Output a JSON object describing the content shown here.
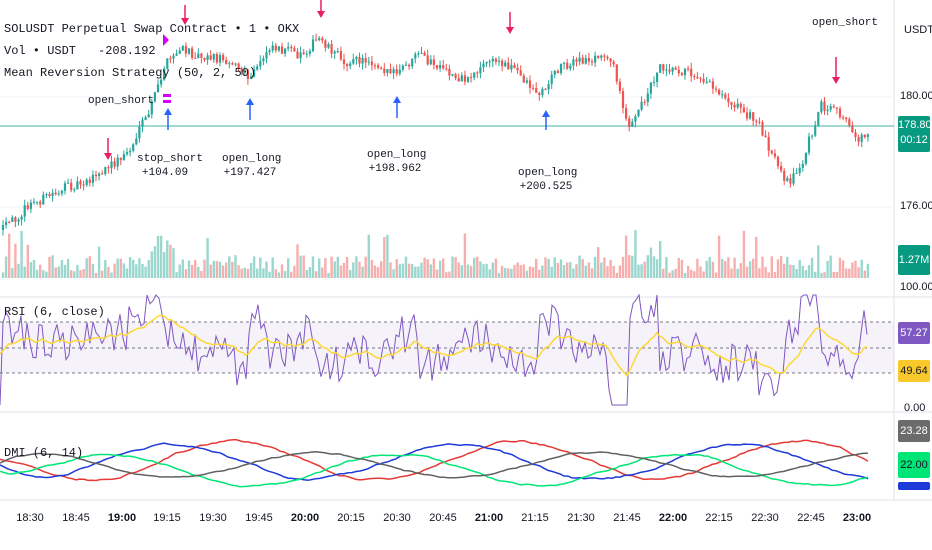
{
  "legend": {
    "symbol": "SOLUSDT Perpetual Swap Contract • 1 • OKX",
    "volume": "Vol • USDT",
    "volume_value": "-208.192",
    "strategy": "Mean Reversion Strategy (50, 2, 50)",
    "rsi": "RSI (6, close)",
    "dmi": "DMI (6, 14)"
  },
  "price_axis": {
    "currency": "USDT",
    "levels": [
      "180.00",
      "176.00"
    ],
    "current_price": "178.80",
    "countdown": "00:12"
  },
  "volume_axis": {
    "current": "1.27M"
  },
  "rsi_axis": {
    "top": "100.00",
    "bottom": "0.00",
    "rsi_value": "57.27",
    "ma_value": "49.64"
  },
  "dmi_axis": {
    "v1": "23.28",
    "v2": "22.00"
  },
  "annotations": [
    {
      "kind": "signal",
      "label": "open_short",
      "sub": ""
    },
    {
      "kind": "trade",
      "label": "stop_short",
      "sub": "+104.09"
    },
    {
      "kind": "trade",
      "label": "open_long",
      "sub": "+197.427"
    },
    {
      "kind": "trade",
      "label": "open_long",
      "sub": "+198.962"
    },
    {
      "kind": "trade",
      "label": "open_long",
      "sub": "+200.525"
    },
    {
      "kind": "signal",
      "label": "open_short",
      "sub": ""
    }
  ],
  "time_labels": [
    "18:30",
    "18:45",
    "19:00",
    "19:15",
    "19:30",
    "19:45",
    "20:00",
    "20:15",
    "20:30",
    "20:45",
    "21:00",
    "21:15",
    "21:30",
    "21:45",
    "22:00",
    "22:15",
    "22:30",
    "22:45",
    "23:00"
  ],
  "time_bold": [
    "19:00",
    "20:00",
    "21:00",
    "22:00",
    "23:00"
  ],
  "colors": {
    "up": "#26a69a",
    "down": "#ef5350",
    "rsi": "#7e57c2",
    "rsi_ma": "#fdd835",
    "dmi_plus": "#00e676",
    "dmi_minus": "#e53935",
    "adx": "#1e3ad8",
    "dmi_grey": "#616161",
    "buy_arrow": "#2962ff",
    "sell_arrow": "#e91e63",
    "avg_line": "#80cbc4"
  },
  "icons": [
    "buy-arrow-icon",
    "sell-arrow-icon"
  ]
}
